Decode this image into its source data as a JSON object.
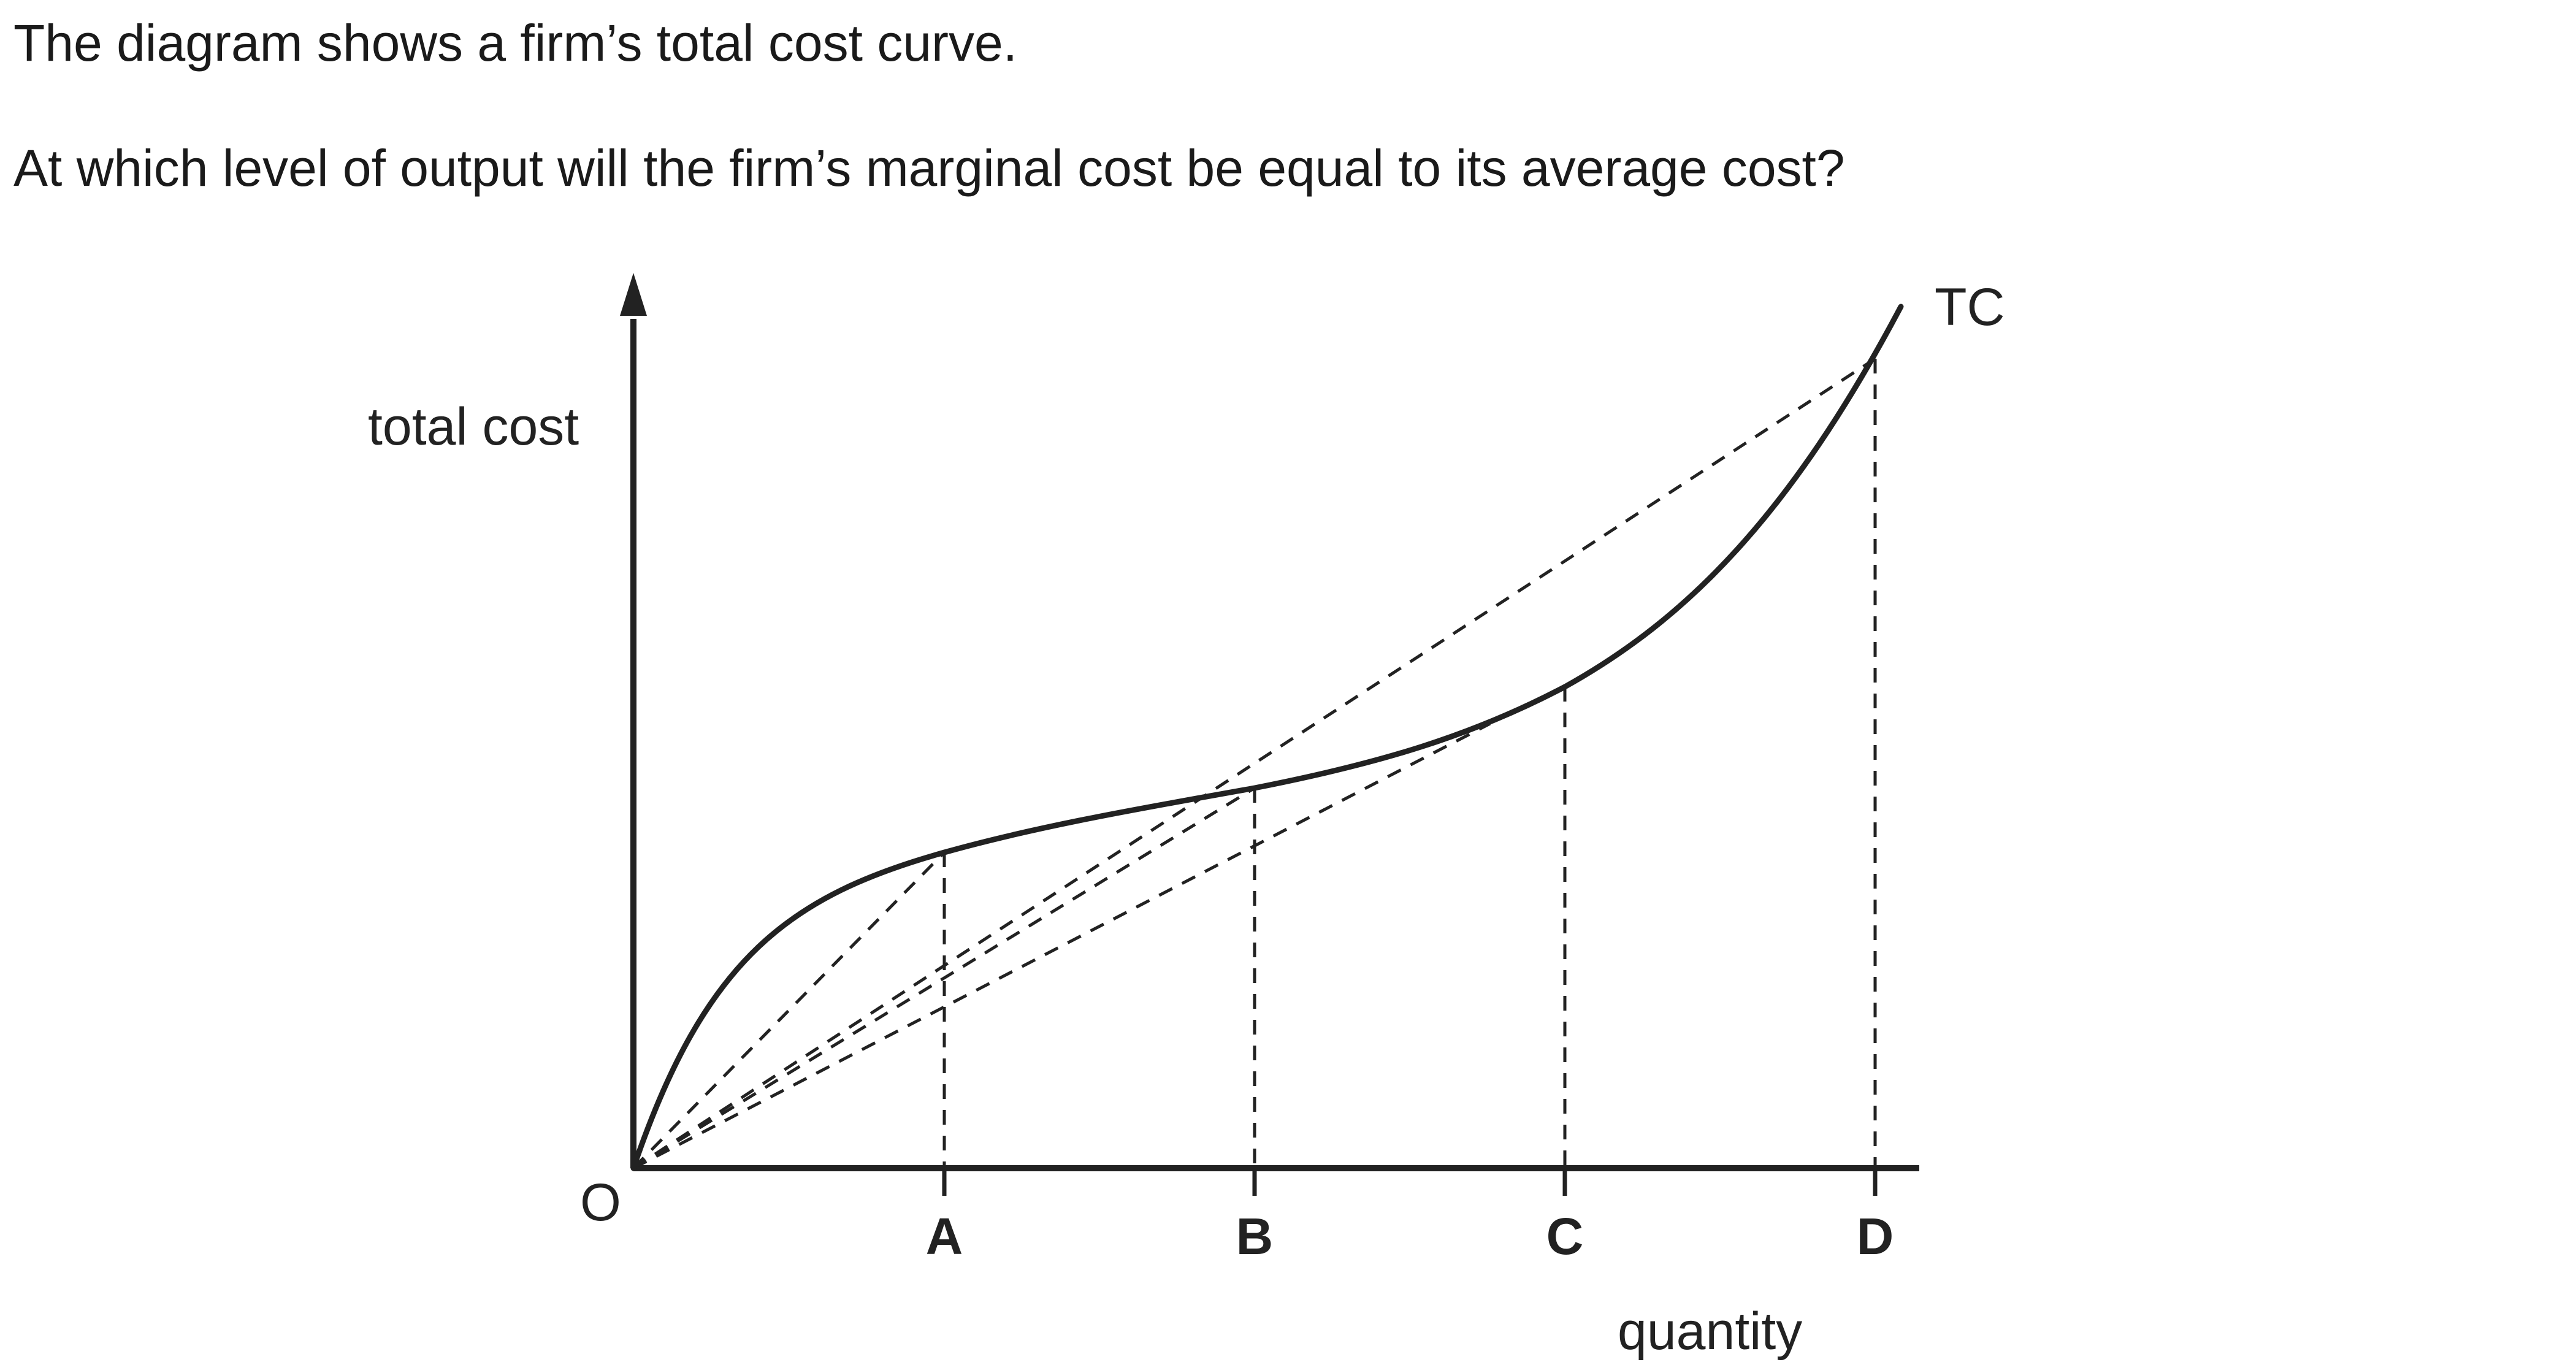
{
  "question": {
    "line1": "The diagram shows a firm’s total cost curve.",
    "line2": "At which level of output will the firm’s marginal cost be equal to its average cost?"
  },
  "diagram": {
    "y_axis_label": "total cost",
    "x_axis_label": "quantity",
    "origin_label": "O",
    "curve_label": "TC",
    "points": [
      {
        "label": "A"
      },
      {
        "label": "B"
      },
      {
        "label": "C"
      },
      {
        "label": "D"
      }
    ]
  },
  "colors": {
    "ink": "#222222"
  }
}
